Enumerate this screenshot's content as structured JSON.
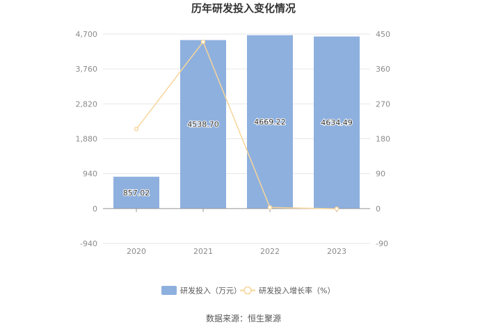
{
  "chart_data": {
    "type": "bar",
    "title": "历年研发投入变化情况",
    "categories": [
      "2020",
      "2021",
      "2022",
      "2023"
    ],
    "series": [
      {
        "name": "研发投入（万元）",
        "type": "bar",
        "axis": "left",
        "color": "#8eb0de",
        "values": [
          857.02,
          4538.7,
          4669.22,
          4634.49
        ],
        "labels": [
          "857.02",
          "4538.70",
          "4669.22",
          "4634.49"
        ]
      },
      {
        "name": "研发投入增长率（%）",
        "type": "line",
        "axis": "right",
        "color": "#f7d59a",
        "values": [
          205,
          430,
          2.9,
          -0.7
        ]
      }
    ],
    "y_left": {
      "min": -940,
      "max": 4700,
      "ticks": [
        -940,
        0,
        940,
        1880,
        2820,
        3760,
        4700
      ],
      "tick_labels": [
        "-940",
        "0",
        "940",
        "1,880",
        "2,820",
        "3,760",
        "4,700"
      ]
    },
    "y_right": {
      "min": -90,
      "max": 450,
      "ticks": [
        -90,
        0,
        90,
        180,
        270,
        360,
        450
      ],
      "tick_labels": [
        "-90",
        "0",
        "90",
        "180",
        "270",
        "360",
        "450"
      ]
    },
    "grid": true,
    "legend_position": "bottom"
  },
  "source": "数据来源：恒生聚源"
}
